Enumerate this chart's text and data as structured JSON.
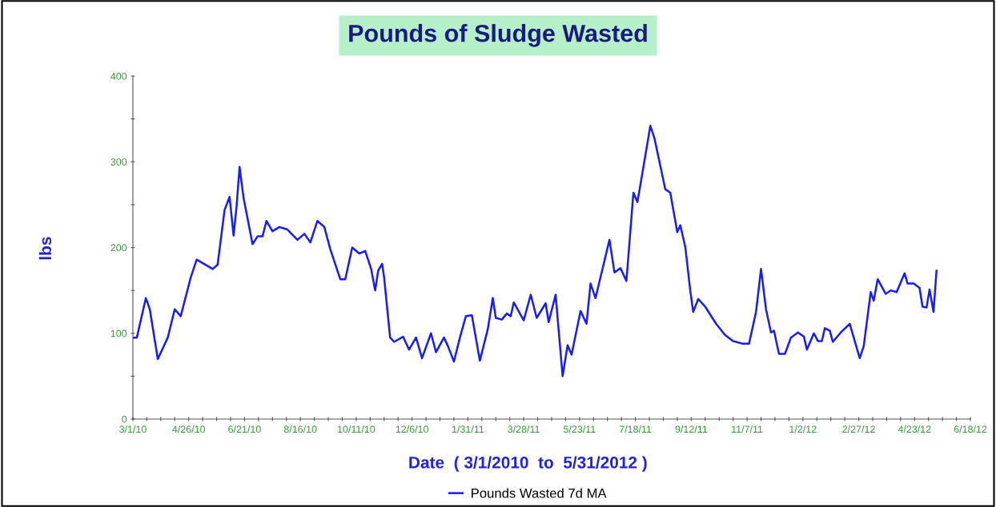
{
  "chart_data": {
    "type": "line",
    "title": "Pounds of Sludge Wasted",
    "xlabel": "Date  ( 3/1/2010  to  5/31/2012 )",
    "ylabel": "lbs",
    "legend": "bottom",
    "grid": false,
    "marker": "none",
    "line_style": "solid",
    "xlim": [
      "2010-03-01",
      "2012-06-18"
    ],
    "xticks": [
      {
        "value": "2010-03-01",
        "label": "3/1/10"
      },
      {
        "value": "2010-03-15",
        "label": null
      },
      {
        "value": "2010-03-29",
        "label": null
      },
      {
        "value": "2010-04-12",
        "label": null
      },
      {
        "value": "2010-04-26",
        "label": "4/26/10"
      },
      {
        "value": "2010-05-10",
        "label": null
      },
      {
        "value": "2010-05-24",
        "label": null
      },
      {
        "value": "2010-06-07",
        "label": null
      },
      {
        "value": "2010-06-21",
        "label": "6/21/10"
      },
      {
        "value": "2010-07-05",
        "label": null
      },
      {
        "value": "2010-07-19",
        "label": null
      },
      {
        "value": "2010-08-02",
        "label": null
      },
      {
        "value": "2010-08-16",
        "label": "8/16/10"
      },
      {
        "value": "2010-08-30",
        "label": null
      },
      {
        "value": "2010-09-13",
        "label": null
      },
      {
        "value": "2010-09-27",
        "label": null
      },
      {
        "value": "2010-10-11",
        "label": "10/11/10"
      },
      {
        "value": "2010-10-25",
        "label": null
      },
      {
        "value": "2010-11-08",
        "label": null
      },
      {
        "value": "2010-11-22",
        "label": null
      },
      {
        "value": "2010-12-06",
        "label": "12/6/10"
      },
      {
        "value": "2010-12-20",
        "label": null
      },
      {
        "value": "2011-01-03",
        "label": null
      },
      {
        "value": "2011-01-17",
        "label": null
      },
      {
        "value": "2011-01-31",
        "label": "1/31/11"
      },
      {
        "value": "2011-02-14",
        "label": null
      },
      {
        "value": "2011-02-28",
        "label": null
      },
      {
        "value": "2011-03-14",
        "label": null
      },
      {
        "value": "2011-03-28",
        "label": "3/28/11"
      },
      {
        "value": "2011-04-11",
        "label": null
      },
      {
        "value": "2011-04-25",
        "label": null
      },
      {
        "value": "2011-05-09",
        "label": null
      },
      {
        "value": "2011-05-23",
        "label": "5/23/11"
      },
      {
        "value": "2011-06-06",
        "label": null
      },
      {
        "value": "2011-06-20",
        "label": null
      },
      {
        "value": "2011-07-04",
        "label": null
      },
      {
        "value": "2011-07-18",
        "label": "7/18/11"
      },
      {
        "value": "2011-08-01",
        "label": null
      },
      {
        "value": "2011-08-15",
        "label": null
      },
      {
        "value": "2011-08-29",
        "label": null
      },
      {
        "value": "2011-09-12",
        "label": "9/12/11"
      },
      {
        "value": "2011-09-26",
        "label": null
      },
      {
        "value": "2011-10-10",
        "label": null
      },
      {
        "value": "2011-10-24",
        "label": null
      },
      {
        "value": "2011-11-07",
        "label": "11/7/11"
      },
      {
        "value": "2011-11-21",
        "label": null
      },
      {
        "value": "2011-12-05",
        "label": null
      },
      {
        "value": "2011-12-19",
        "label": null
      },
      {
        "value": "2012-01-02",
        "label": "1/2/12"
      },
      {
        "value": "2012-01-16",
        "label": null
      },
      {
        "value": "2012-01-30",
        "label": null
      },
      {
        "value": "2012-02-13",
        "label": null
      },
      {
        "value": "2012-02-27",
        "label": "2/27/12"
      },
      {
        "value": "2012-03-12",
        "label": null
      },
      {
        "value": "2012-03-26",
        "label": null
      },
      {
        "value": "2012-04-09",
        "label": null
      },
      {
        "value": "2012-04-23",
        "label": "4/23/12"
      },
      {
        "value": "2012-05-07",
        "label": null
      },
      {
        "value": "2012-05-21",
        "label": null
      },
      {
        "value": "2012-06-04",
        "label": null
      },
      {
        "value": "2012-06-18",
        "label": "6/18/12"
      }
    ],
    "ylim": [
      0,
      400
    ],
    "yticks": [
      0,
      {
        "value": 50,
        "label": null
      },
      100,
      {
        "value": 150,
        "label": null
      },
      200,
      {
        "value": 250,
        "label": null
      },
      300,
      {
        "value": 350,
        "label": null
      },
      400
    ],
    "x": [
      "2010-03-01",
      "2010-03-05",
      "2010-03-14",
      "2010-03-18",
      "2010-03-26",
      "2010-04-05",
      "2010-04-12",
      "2010-04-18",
      "2010-04-28",
      "2010-05-04",
      "2010-05-20",
      "2010-05-25",
      "2010-06-01",
      "2010-06-06",
      "2010-06-10",
      "2010-06-13",
      "2010-06-16",
      "2010-06-20",
      "2010-06-29",
      "2010-07-04",
      "2010-07-09",
      "2010-07-13",
      "2010-07-19",
      "2010-07-26",
      "2010-08-03",
      "2010-08-13",
      "2010-08-20",
      "2010-08-26",
      "2010-09-02",
      "2010-09-09",
      "2010-09-15",
      "2010-09-25",
      "2010-09-30",
      "2010-10-07",
      "2010-10-14",
      "2010-10-20",
      "2010-10-26",
      "2010-10-30",
      "2010-11-02",
      "2010-11-06",
      "2010-11-08",
      "2010-11-14",
      "2010-11-18",
      "2010-11-27",
      "2010-12-03",
      "2010-12-10",
      "2010-12-16",
      "2010-12-25",
      "2010-12-30",
      "2011-01-07",
      "2011-01-11",
      "2011-01-17",
      "2011-01-23",
      "2011-01-29",
      "2011-02-04",
      "2011-02-12",
      "2011-02-20",
      "2011-02-25",
      "2011-02-28",
      "2011-03-06",
      "2011-03-11",
      "2011-03-15",
      "2011-03-18",
      "2011-03-28",
      "2011-04-04",
      "2011-04-10",
      "2011-04-19",
      "2011-04-22",
      "2011-04-29",
      "2011-05-06",
      "2011-05-11",
      "2011-05-15",
      "2011-05-24",
      "2011-05-30",
      "2011-06-03",
      "2011-06-08",
      "2011-06-22",
      "2011-06-27",
      "2011-07-03",
      "2011-07-09",
      "2011-07-16",
      "2011-07-20",
      "2011-07-23",
      "2011-08-02",
      "2011-08-06",
      "2011-08-17",
      "2011-08-22",
      "2011-08-29",
      "2011-09-01",
      "2011-09-06",
      "2011-09-11",
      "2011-09-14",
      "2011-09-19",
      "2011-09-26",
      "2011-10-07",
      "2011-10-16",
      "2011-10-24",
      "2011-11-02",
      "2011-11-09",
      "2011-11-16",
      "2011-11-21",
      "2011-11-26",
      "2011-12-01",
      "2011-12-04",
      "2011-12-09",
      "2011-12-15",
      "2011-12-21",
      "2011-12-28",
      "2012-01-03",
      "2012-01-06",
      "2012-01-13",
      "2012-01-17",
      "2012-01-21",
      "2012-01-24",
      "2012-01-29",
      "2012-02-01",
      "2012-02-09",
      "2012-02-18",
      "2012-02-22",
      "2012-02-28",
      "2012-03-03",
      "2012-03-10",
      "2012-03-13",
      "2012-03-17",
      "2012-03-25",
      "2012-03-30",
      "2012-04-05",
      "2012-04-13",
      "2012-04-16",
      "2012-04-22",
      "2012-04-28",
      "2012-05-01",
      "2012-05-05",
      "2012-05-08",
      "2012-05-12",
      "2012-05-15"
    ],
    "series": [
      {
        "name": "Pounds Wasted 7d MA",
        "color": "#1a1aff",
        "values": [
          95,
          95,
          141,
          128,
          70,
          95,
          128,
          120,
          165,
          186,
          175,
          180,
          244,
          259,
          214,
          248,
          294,
          258,
          204,
          213,
          213,
          231,
          219,
          224,
          221,
          209,
          216,
          206,
          231,
          224,
          198,
          163,
          163,
          200,
          193,
          196,
          175,
          150,
          173,
          181,
          165,
          95,
          90,
          96,
          81,
          95,
          71,
          100,
          78,
          95,
          85,
          67,
          95,
          120,
          121,
          68,
          105,
          141,
          118,
          116,
          123,
          120,
          136,
          115,
          145,
          118,
          135,
          113,
          145,
          50,
          86,
          75,
          126,
          111,
          158,
          141,
          209,
          171,
          176,
          161,
          264,
          253,
          273,
          342,
          328,
          268,
          264,
          218,
          226,
          201,
          150,
          125,
          140,
          131,
          111,
          98,
          91,
          88,
          88,
          125,
          175,
          128,
          101,
          103,
          76,
          76,
          95,
          101,
          96,
          81,
          100,
          91,
          91,
          106,
          103,
          90,
          101,
          111,
          95,
          71,
          85,
          148,
          138,
          163,
          146,
          150,
          148,
          170,
          158,
          158,
          153,
          131,
          130,
          151,
          125,
          173
        ]
      }
    ]
  }
}
